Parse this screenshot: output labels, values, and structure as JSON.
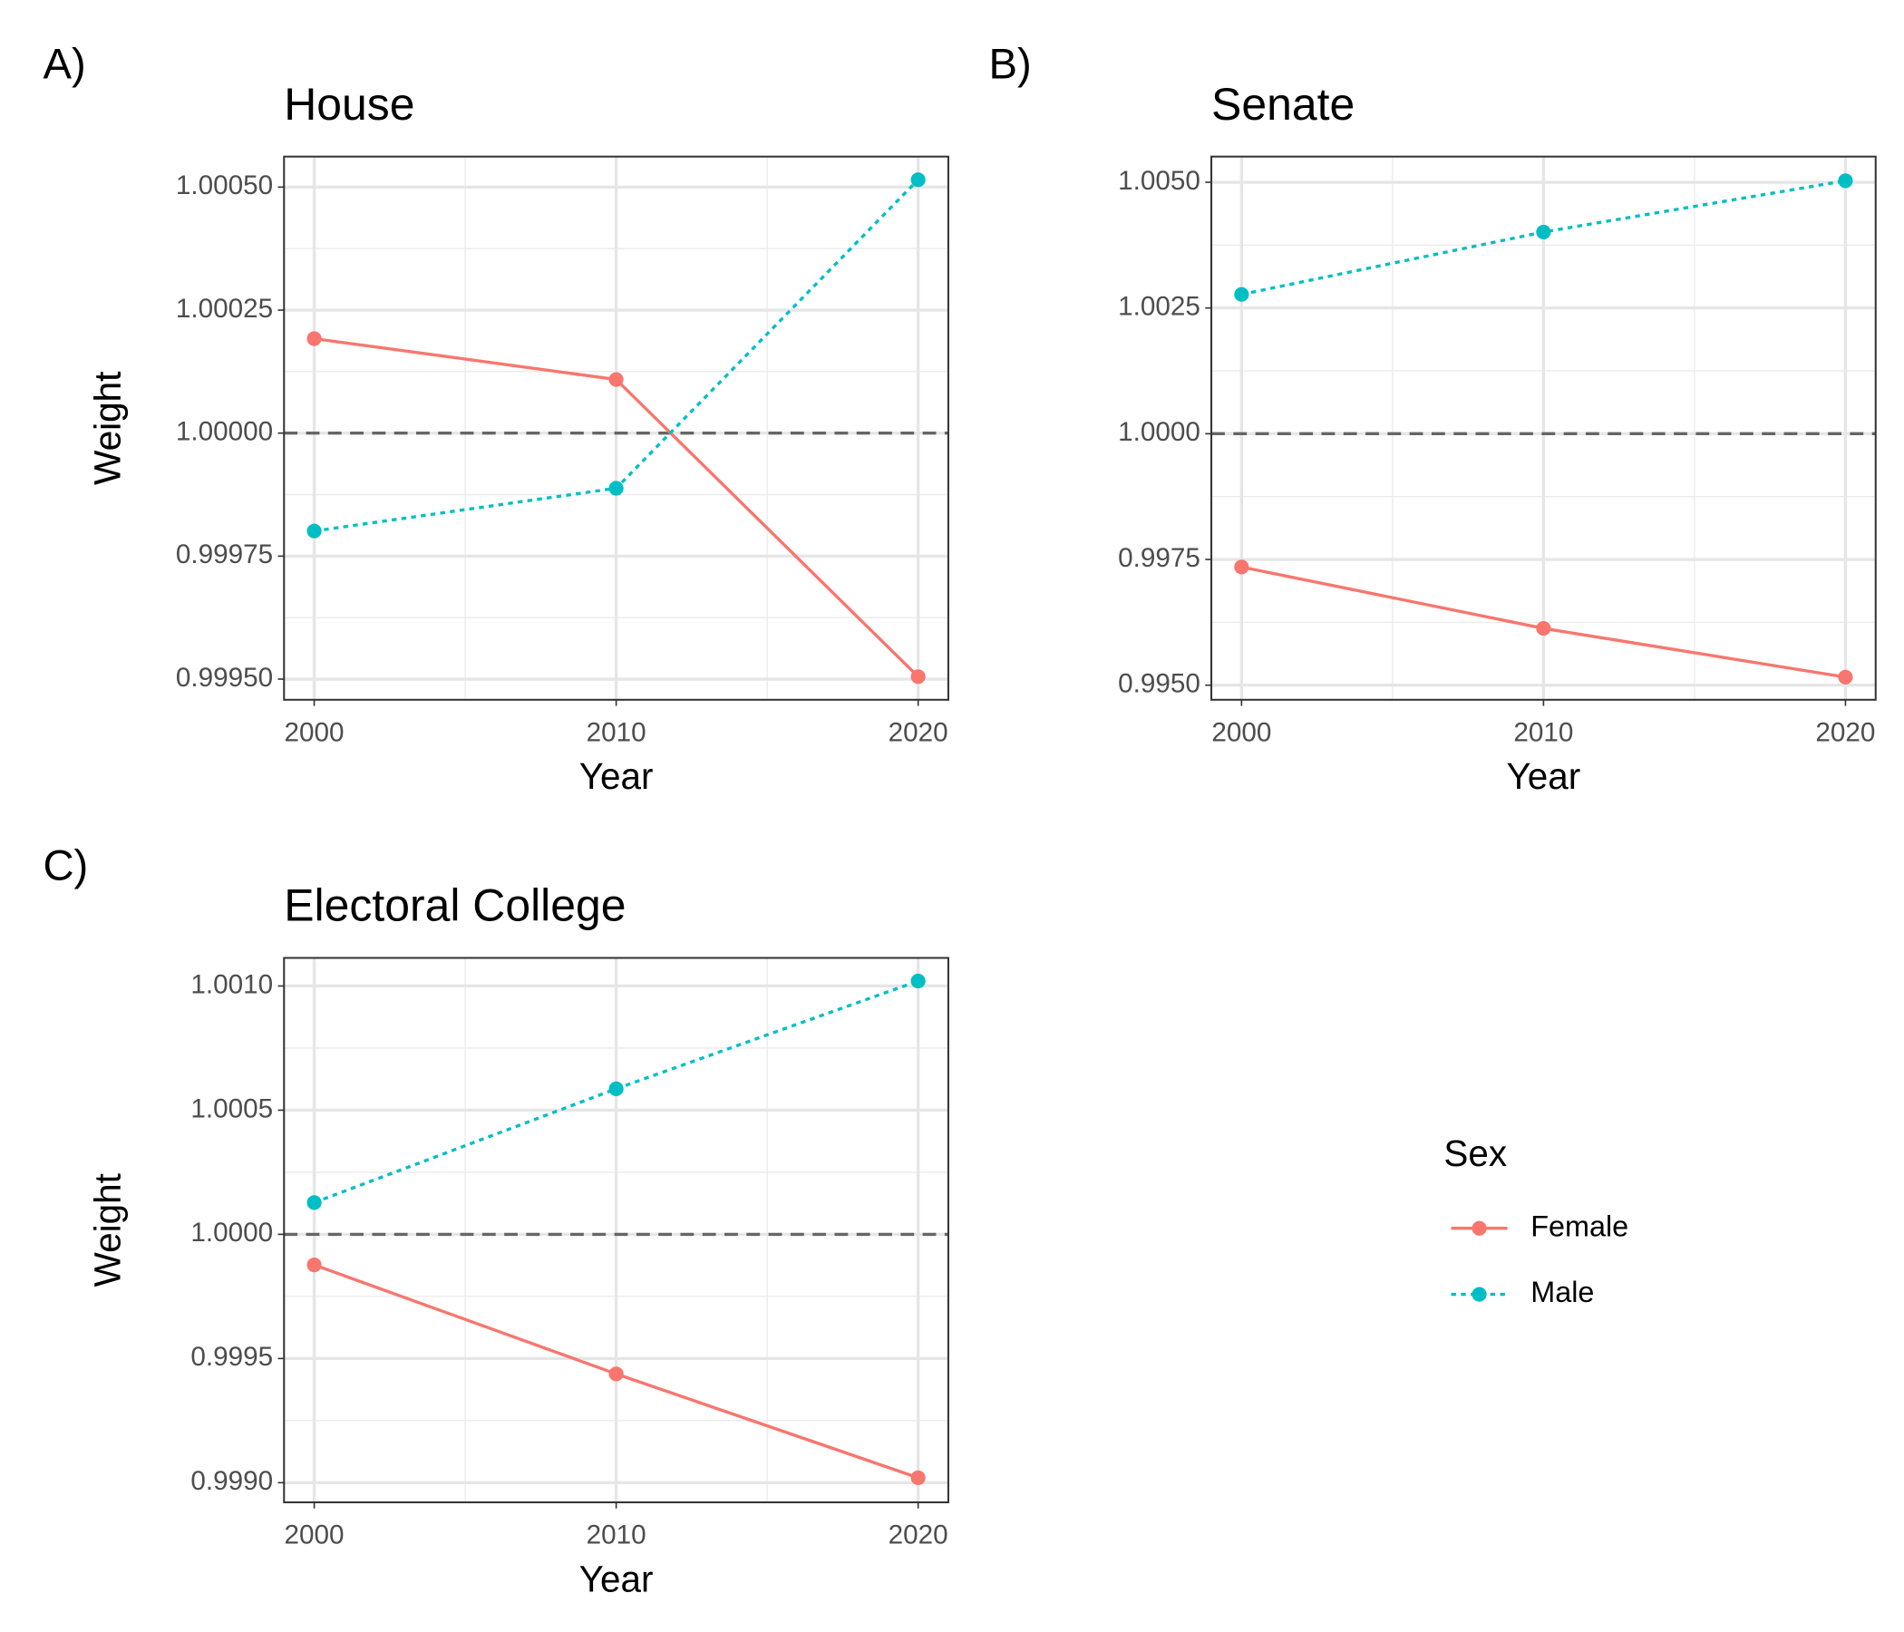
{
  "chart_data": [
    {
      "type": "line",
      "panel_label": "A)",
      "title": "House",
      "x_label": "Year",
      "y_label": "Weight",
      "x": [
        2000,
        2010,
        2020
      ],
      "xlim": [
        1999,
        2021
      ],
      "xticks": [
        2000,
        2010,
        2020
      ],
      "ylim": [
        0.999458,
        1.000562
      ],
      "yticks": [
        {
          "value": 0.9995,
          "label": "0.99950"
        },
        0.99975,
        {
          "value": 1,
          "label": "1.00000"
        },
        {
          "value": 1.00025,
          "label": "1.00025"
        },
        {
          "value": 1.0005,
          "label": "1.00050"
        }
      ],
      "hline": 1,
      "grid": true,
      "series": [
        {
          "name": "Female",
          "color": "#f8766d",
          "linestyle": "solid",
          "values": [
            1.000192,
            1.000109,
            0.999505
          ]
        },
        {
          "name": "Male",
          "color": "#00bfc4",
          "linestyle": "dotted",
          "values": [
            0.999801,
            0.999888,
            1.000515
          ]
        }
      ]
    },
    {
      "type": "line",
      "panel_label": "B)",
      "title": "Senate",
      "x_label": "Year",
      "y_label": "Weight",
      "x": [
        2000,
        2010,
        2020
      ],
      "xlim": [
        1999,
        2021
      ],
      "xticks": [
        2000,
        2010,
        2020
      ],
      "ylim": [
        0.99471,
        1.00551
      ],
      "yticks": [
        {
          "value": 0.995,
          "label": "0.9950"
        },
        0.9975,
        {
          "value": 1,
          "label": "1.0000"
        },
        1.0025,
        {
          "value": 1.005,
          "label": "1.0050"
        }
      ],
      "hline": 1,
      "grid": true,
      "series": [
        {
          "name": "Female",
          "color": "#f8766d",
          "linestyle": "solid",
          "values": [
            0.99735,
            0.99613,
            0.99516
          ]
        },
        {
          "name": "Male",
          "color": "#00bfc4",
          "linestyle": "dotted",
          "values": [
            1.00277,
            1.00401,
            1.00503
          ]
        }
      ]
    },
    {
      "type": "line",
      "panel_label": "C)",
      "title": "Electoral College",
      "x_label": "Year",
      "y_label": "Weight",
      "x": [
        2000,
        2010,
        2020
      ],
      "xlim": [
        1999,
        2021
      ],
      "xticks": [
        2000,
        2010,
        2020
      ],
      "ylim": [
        0.998921,
        1.001113
      ],
      "yticks": [
        {
          "value": 0.999,
          "label": "0.9990"
        },
        0.9995,
        {
          "value": 1,
          "label": "1.0000"
        },
        1.0005,
        {
          "value": 1.001,
          "label": "1.0010"
        }
      ],
      "hline": 1,
      "grid": true,
      "series": [
        {
          "name": "Female",
          "color": "#f8766d",
          "linestyle": "solid",
          "values": [
            0.999877,
            0.999438,
            0.99902
          ]
        },
        {
          "name": "Male",
          "color": "#00bfc4",
          "linestyle": "dotted",
          "values": [
            1.000128,
            1.000586,
            1.00102
          ]
        }
      ]
    }
  ],
  "legend": {
    "title": "Sex"
  }
}
